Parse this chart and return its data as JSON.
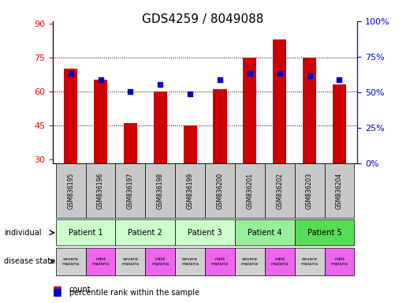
{
  "title": "GDS4259 / 8049088",
  "samples": [
    "GSM836195",
    "GSM836196",
    "GSM836197",
    "GSM836198",
    "GSM836199",
    "GSM836200",
    "GSM836201",
    "GSM836202",
    "GSM836203",
    "GSM836204"
  ],
  "bar_values": [
    70,
    65,
    46,
    60,
    45,
    61,
    75,
    83,
    75,
    63
  ],
  "blue_values": [
    68,
    65,
    60,
    63,
    59,
    65,
    68,
    68,
    67,
    65
  ],
  "ylim_left": [
    28,
    91
  ],
  "ylim_right": [
    0,
    100
  ],
  "yticks_left": [
    30,
    45,
    60,
    75,
    90
  ],
  "yticks_right": [
    0,
    25,
    50,
    75,
    100
  ],
  "ytick_labels_right": [
    "0%",
    "25%",
    "50%",
    "75%",
    "100%"
  ],
  "bar_color": "#cc0000",
  "blue_color": "#0000cc",
  "grid_values": [
    45,
    60,
    75
  ],
  "patients": [
    {
      "label": "Patient 1",
      "cols": [
        0,
        1
      ],
      "color": "#ccffcc"
    },
    {
      "label": "Patient 2",
      "cols": [
        2,
        3
      ],
      "color": "#ccffcc"
    },
    {
      "label": "Patient 3",
      "cols": [
        4,
        5
      ],
      "color": "#ccffcc"
    },
    {
      "label": "Patient 4",
      "cols": [
        6,
        7
      ],
      "color": "#99ee99"
    },
    {
      "label": "Patient 5",
      "cols": [
        8,
        9
      ],
      "color": "#55dd55"
    }
  ],
  "disease_states": [
    {
      "label": "severe\nmalaria",
      "col": 0,
      "color": "#d0d0d0"
    },
    {
      "label": "mild\nmalaria",
      "col": 1,
      "color": "#ee66ee"
    },
    {
      "label": "severe\nmalaria",
      "col": 2,
      "color": "#d0d0d0"
    },
    {
      "label": "mild\nmalaria",
      "col": 3,
      "color": "#ee66ee"
    },
    {
      "label": "severe\nmalaria",
      "col": 4,
      "color": "#d0d0d0"
    },
    {
      "label": "mild\nmalaria",
      "col": 5,
      "color": "#ee66ee"
    },
    {
      "label": "severe\nmalaria",
      "col": 6,
      "color": "#d0d0d0"
    },
    {
      "label": "mild\nmalaria",
      "col": 7,
      "color": "#ee66ee"
    },
    {
      "label": "severe\nmalaria",
      "col": 8,
      "color": "#d0d0d0"
    },
    {
      "label": "mild\nmalaria",
      "col": 9,
      "color": "#ee66ee"
    }
  ],
  "sample_row_color": "#c8c8c8",
  "individual_label": "individual",
  "disease_state_label": "disease state",
  "legend_count_label": "count",
  "legend_percentile_label": "percentile rank within the sample"
}
